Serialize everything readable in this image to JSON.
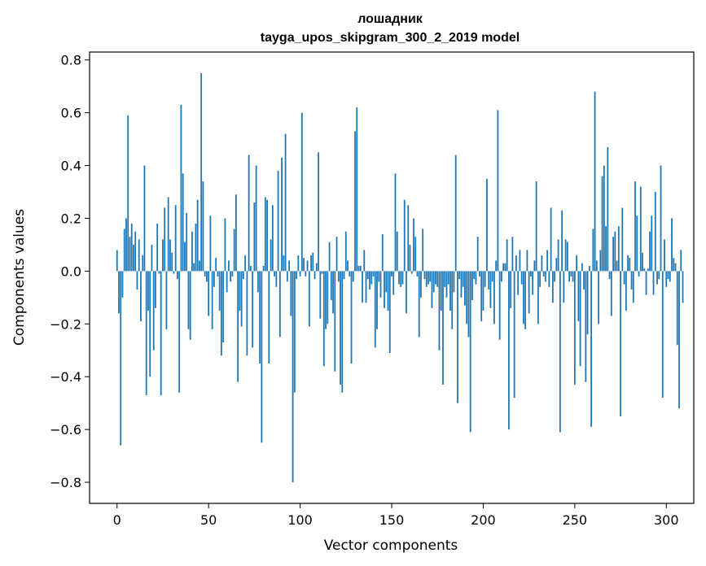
{
  "chart_data": {
    "type": "bar",
    "title": "лошадник",
    "subtitle": "tayga_upos_skipgram_300_2_2019 model",
    "xlabel": "Vector components",
    "ylabel": "Components values",
    "xlim": [
      -15,
      315
    ],
    "ylim": [
      -0.88,
      0.83
    ],
    "xticks": [
      0,
      50,
      100,
      150,
      200,
      250,
      300
    ],
    "yticks": [
      -0.8,
      -0.6,
      -0.4,
      -0.2,
      0.0,
      0.2,
      0.4,
      0.6,
      0.8
    ],
    "ytick_labels": [
      "−0.8",
      "−0.6",
      "−0.4",
      "−0.2",
      "0.0",
      "0.2",
      "0.4",
      "0.6",
      "0.8"
    ],
    "xtick_labels": [
      "0",
      "50",
      "100",
      "150",
      "200",
      "250",
      "300"
    ],
    "color": "#1f77b4",
    "values": [
      0.08,
      -0.16,
      -0.66,
      -0.1,
      0.16,
      0.2,
      0.59,
      0.13,
      0.18,
      0.1,
      0.15,
      -0.07,
      0.12,
      -0.19,
      0.06,
      0.4,
      -0.47,
      -0.15,
      -0.4,
      0.1,
      -0.3,
      -0.14,
      0.18,
      -0.01,
      -0.47,
      0.12,
      0.24,
      -0.22,
      0.28,
      0.12,
      0.07,
      -0.01,
      0.25,
      -0.03,
      -0.46,
      0.63,
      0.37,
      0.11,
      0.22,
      -0.22,
      -0.26,
      0.15,
      0.03,
      0.18,
      0.27,
      0.04,
      0.75,
      0.34,
      -0.02,
      -0.04,
      -0.17,
      0.21,
      -0.22,
      -0.06,
      0.05,
      -0.02,
      -0.15,
      -0.32,
      -0.27,
      0.2,
      -0.08,
      0.04,
      -0.04,
      -0.02,
      0.16,
      0.29,
      -0.42,
      -0.15,
      -0.21,
      -0.03,
      0.06,
      -0.32,
      0.44,
      0.02,
      -0.29,
      0.26,
      0.4,
      -0.08,
      -0.35,
      -0.65,
      0.02,
      0.28,
      0.27,
      -0.35,
      0.12,
      0.25,
      -0.02,
      -0.06,
      0.38,
      -0.25,
      0.43,
      0.06,
      0.52,
      -0.04,
      0.04,
      -0.17,
      -0.8,
      -0.46,
      -0.03,
      0.06,
      -0.02,
      0.6,
      0.05,
      -0.02,
      0.04,
      -0.21,
      0.06,
      0.07,
      -0.03,
      0.03,
      0.45,
      -0.18,
      -0.01,
      -0.36,
      -0.22,
      -0.2,
      0.11,
      -0.11,
      -0.16,
      -0.38,
      0.13,
      -0.04,
      -0.43,
      -0.46,
      -0.03,
      0.15,
      0.04,
      -0.02,
      -0.35,
      -0.04,
      0.53,
      0.62,
      0.02,
      0.02,
      -0.12,
      0.08,
      -0.12,
      -0.03,
      -0.07,
      -0.05,
      -0.02,
      -0.29,
      -0.22,
      -0.04,
      -0.1,
      0.14,
      -0.14,
      -0.08,
      -0.15,
      -0.31,
      -0.02,
      -0.09,
      0.37,
      0.15,
      -0.05,
      -0.06,
      -0.05,
      0.27,
      -0.16,
      0.25,
      0.1,
      -0.01,
      0.2,
      0.13,
      -0.02,
      -0.25,
      -0.1,
      0.16,
      -0.03,
      -0.06,
      -0.05,
      -0.04,
      -0.14,
      -0.08,
      -0.05,
      -0.06,
      -0.3,
      -0.15,
      -0.43,
      -0.06,
      -0.1,
      -0.05,
      -0.15,
      -0.22,
      -0.08,
      0.44,
      -0.5,
      -0.03,
      -0.1,
      -0.06,
      -0.13,
      -0.2,
      -0.25,
      -0.61,
      -0.11,
      -0.03,
      -0.05,
      0.13,
      -0.02,
      -0.19,
      -0.15,
      -0.06,
      0.35,
      -0.07,
      -0.14,
      -0.04,
      -0.2,
      0.04,
      0.61,
      -0.26,
      -0.04,
      0.03,
      0.03,
      0.12,
      -0.6,
      -0.14,
      0.13,
      -0.48,
      0.06,
      -0.09,
      0.08,
      -0.05,
      -0.2,
      -0.22,
      0.08,
      -0.16,
      -0.02,
      -0.09,
      0.04,
      0.34,
      -0.2,
      -0.06,
      0.06,
      -0.02,
      -0.04,
      0.08,
      -0.06,
      0.24,
      -0.12,
      -0.04,
      0.05,
      0.12,
      -0.61,
      0.23,
      -0.12,
      0.12,
      0.11,
      -0.04,
      -0.02,
      -0.04,
      -0.43,
      0.06,
      -0.19,
      -0.36,
      0.03,
      -0.07,
      -0.42,
      -0.24,
      0.02,
      -0.59,
      0.16,
      0.68,
      0.04,
      -0.2,
      0.08,
      0.36,
      0.4,
      0.17,
      0.47,
      -0.03,
      -0.17,
      0.13,
      0.15,
      0.04,
      0.17,
      -0.55,
      0.24,
      -0.05,
      -0.15,
      0.06,
      0.05,
      -0.07,
      -0.12,
      0.34,
      0.21,
      -0.02,
      0.32,
      0.07,
      0.01,
      -0.09,
      0.01,
      0.15,
      0.21,
      -0.09,
      0.3,
      -0.05,
      -0.03,
      0.4,
      -0.48,
      0.12,
      -0.06,
      -0.03,
      -0.04,
      0.2,
      0.05,
      0.03,
      -0.28,
      -0.52,
      0.08,
      -0.12
    ]
  }
}
